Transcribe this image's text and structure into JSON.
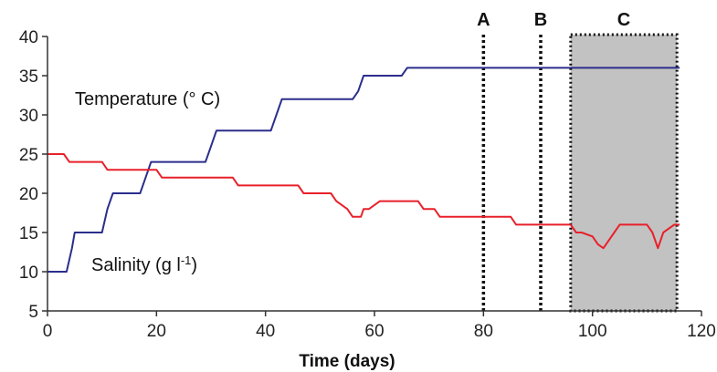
{
  "chart_data": {
    "type": "line",
    "xlabel": "Time (days)",
    "ylabel": "",
    "xlim": [
      0,
      120
    ],
    "ylim": [
      5,
      40
    ],
    "x_ticks": [
      0,
      20,
      40,
      60,
      80,
      100,
      120
    ],
    "y_ticks": [
      5,
      10,
      15,
      20,
      25,
      30,
      35,
      40
    ],
    "grid": false,
    "legend": "none",
    "series": [
      {
        "name": "Temperature (° C)",
        "color": "#2b2e8c",
        "x": [
          0,
          3.5,
          4.5,
          5,
          10,
          11,
          12,
          17,
          18,
          19,
          29,
          30,
          31,
          41,
          42,
          43,
          56,
          57,
          58,
          65,
          66,
          116
        ],
        "y": [
          10,
          10,
          13,
          15,
          15,
          18,
          20,
          20,
          22,
          24,
          24,
          26,
          28,
          28,
          30,
          32,
          32,
          33,
          35,
          35,
          36,
          36
        ]
      },
      {
        "name": "Salinity (g l-1)",
        "color": "#e8202a",
        "x": [
          0,
          3,
          4,
          10,
          11,
          20,
          21,
          34,
          35,
          46,
          47,
          52,
          53,
          55,
          56,
          57.5,
          58,
          59,
          61,
          62,
          63,
          68,
          69,
          71,
          72,
          77,
          78,
          85,
          86,
          96,
          97,
          98,
          100,
          101,
          102,
          103,
          104,
          105,
          107,
          110,
          111,
          112,
          113,
          115,
          116
        ],
        "y": [
          25,
          25,
          24,
          24,
          23,
          23,
          22,
          22,
          21,
          21,
          20,
          20,
          19,
          18,
          17,
          17,
          18,
          18,
          19,
          19,
          19,
          19,
          18,
          18,
          17,
          17,
          17,
          17,
          16,
          16,
          15,
          15,
          14.5,
          13.5,
          13,
          14,
          15,
          16,
          16,
          16,
          15,
          13,
          15,
          16,
          16
        ]
      }
    ],
    "annotations": [
      {
        "text": "Temperature (° C)",
        "series": "Temperature (° C)"
      },
      {
        "text": "Salinity (g l",
        "sup": "-1",
        "suffix": ")",
        "series": "Salinity (g l-1)"
      }
    ],
    "markers": [
      {
        "label": "A",
        "x": 80
      },
      {
        "label": "B",
        "x": 90.5
      },
      {
        "label": "C",
        "x_start": 96,
        "x_end": 115.5,
        "shaded": true
      }
    ]
  }
}
